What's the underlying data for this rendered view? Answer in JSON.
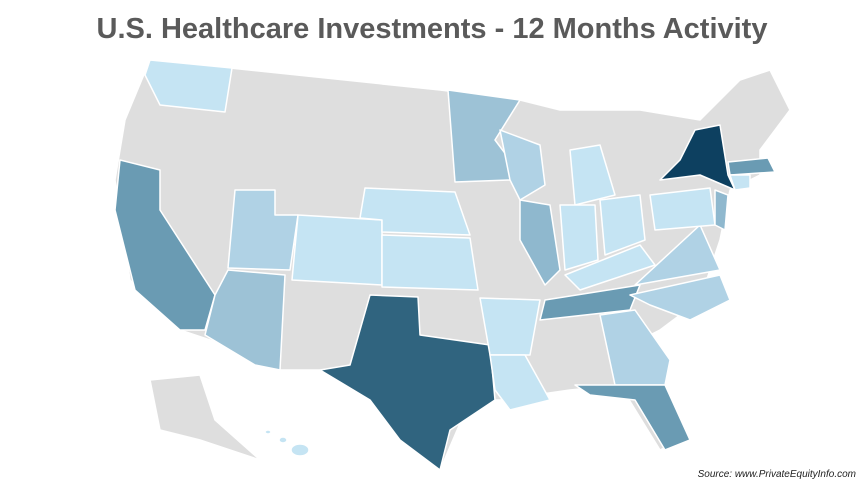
{
  "header": {
    "title": "U.S. Healthcare Investments - 12 Months Activity"
  },
  "footer": {
    "source": "Source: www.PrivateEquityInfo.com"
  }
}
